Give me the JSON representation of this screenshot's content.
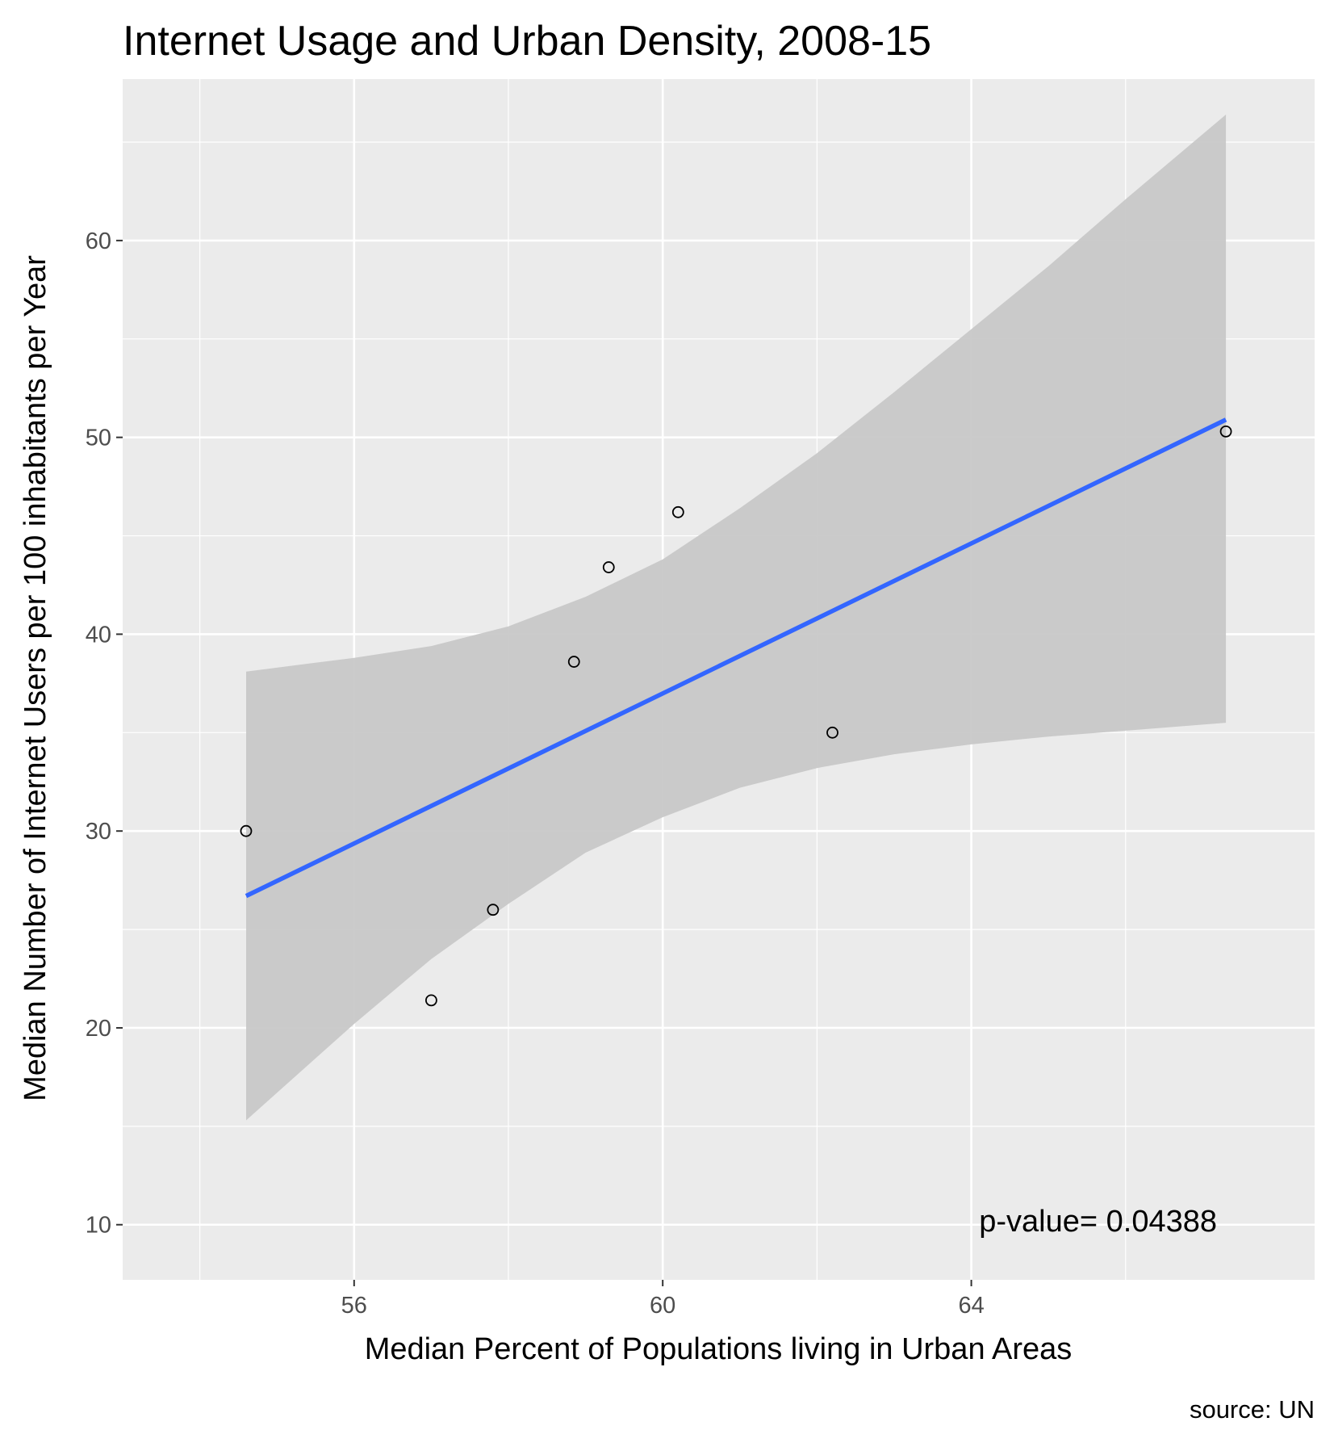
{
  "chart_data": {
    "type": "scatter",
    "title": "Internet Usage and Urban Density, 2008-15",
    "xlabel": "Median Percent of Populations living in Urban Areas",
    "ylabel": "Median Number of Internet Users per 100 inhabitants per Year",
    "caption": "source: UN",
    "annotation": "p-value= 0.04388",
    "xlim": [
      53.0,
      68.45
    ],
    "ylim": [
      7.2,
      68.2
    ],
    "x_ticks": [
      56,
      60,
      64
    ],
    "x_tick_labels": [
      "56",
      "60",
      "64"
    ],
    "y_ticks": [
      10,
      20,
      30,
      40,
      50,
      60
    ],
    "y_tick_labels": [
      "10",
      "20",
      "30",
      "40",
      "50",
      "60"
    ],
    "points": [
      {
        "x": 54.6,
        "y": 30.0
      },
      {
        "x": 57.0,
        "y": 21.4
      },
      {
        "x": 57.8,
        "y": 26.0
      },
      {
        "x": 58.85,
        "y": 38.6
      },
      {
        "x": 59.3,
        "y": 43.4
      },
      {
        "x": 60.2,
        "y": 46.2
      },
      {
        "x": 62.2,
        "y": 35.0
      },
      {
        "x": 67.3,
        "y": 50.3
      }
    ],
    "fit_line": {
      "x": [
        54.6,
        67.3
      ],
      "y": [
        26.7,
        50.9
      ]
    },
    "confidence_band": {
      "x": [
        54.6,
        56.0,
        57.0,
        58.0,
        59.0,
        60.0,
        61.0,
        62.0,
        63.0,
        64.0,
        65.0,
        66.0,
        67.3
      ],
      "upper": [
        38.1,
        38.8,
        39.4,
        40.4,
        41.9,
        43.8,
        46.4,
        49.2,
        52.3,
        55.5,
        58.7,
        62.1,
        66.4
      ],
      "lower": [
        15.3,
        20.2,
        23.5,
        26.3,
        28.9,
        30.7,
        32.2,
        33.2,
        33.9,
        34.4,
        34.8,
        35.1,
        35.5
      ]
    },
    "grid": true,
    "legend": "none",
    "colors": {
      "panel": "#ebebeb",
      "grid": "#ffffff",
      "fit_line": "#3366ff",
      "band": "#c8c8c8",
      "point_stroke": "#000000"
    }
  }
}
